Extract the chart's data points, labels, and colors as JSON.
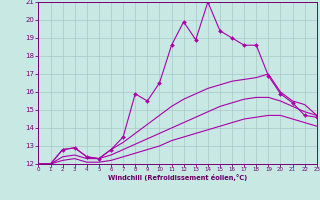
{
  "xlabel": "Windchill (Refroidissement éolien,°C)",
  "xlim": [
    0,
    23
  ],
  "ylim": [
    12,
    21
  ],
  "xticks": [
    0,
    1,
    2,
    3,
    4,
    5,
    6,
    7,
    8,
    9,
    10,
    11,
    12,
    13,
    14,
    15,
    16,
    17,
    18,
    19,
    20,
    21,
    22,
    23
  ],
  "yticks": [
    12,
    13,
    14,
    15,
    16,
    17,
    18,
    19,
    20,
    21
  ],
  "bg_color": "#c8e8e4",
  "grid_color": "#aac8c8",
  "line_color": "#aa00aa",
  "series_jagged": {
    "x": [
      0,
      1,
      2,
      3,
      4,
      5,
      6,
      7,
      8,
      9,
      10,
      11,
      12,
      13,
      14,
      15,
      16,
      17,
      18,
      19,
      20,
      21,
      22,
      23
    ],
    "y": [
      12.0,
      12.0,
      12.8,
      12.9,
      12.4,
      12.3,
      12.8,
      13.5,
      15.9,
      15.5,
      16.5,
      18.6,
      19.9,
      18.9,
      21.0,
      19.4,
      19.0,
      18.6,
      18.6,
      16.9,
      15.9,
      15.4,
      14.7,
      14.6
    ]
  },
  "series_smooth1": {
    "x": [
      0,
      1,
      2,
      3,
      4,
      5,
      6,
      7,
      8,
      9,
      10,
      11,
      12,
      13,
      14,
      15,
      16,
      17,
      18,
      19,
      20,
      21,
      22,
      23
    ],
    "y": [
      12.0,
      12.0,
      12.8,
      12.9,
      12.4,
      12.3,
      12.8,
      13.2,
      13.7,
      14.2,
      14.7,
      15.2,
      15.6,
      15.9,
      16.2,
      16.4,
      16.6,
      16.7,
      16.8,
      17.0,
      16.0,
      15.5,
      15.3,
      14.7
    ]
  },
  "series_smooth2": {
    "x": [
      0,
      1,
      2,
      3,
      4,
      5,
      6,
      7,
      8,
      9,
      10,
      11,
      12,
      13,
      14,
      15,
      16,
      17,
      18,
      19,
      20,
      21,
      22,
      23
    ],
    "y": [
      12.0,
      12.0,
      12.4,
      12.5,
      12.3,
      12.3,
      12.5,
      12.8,
      13.1,
      13.4,
      13.7,
      14.0,
      14.3,
      14.6,
      14.9,
      15.2,
      15.4,
      15.6,
      15.7,
      15.7,
      15.5,
      15.2,
      14.9,
      14.7
    ]
  },
  "series_smooth3": {
    "x": [
      0,
      1,
      2,
      3,
      4,
      5,
      6,
      7,
      8,
      9,
      10,
      11,
      12,
      13,
      14,
      15,
      16,
      17,
      18,
      19,
      20,
      21,
      22,
      23
    ],
    "y": [
      12.0,
      12.0,
      12.2,
      12.3,
      12.1,
      12.1,
      12.2,
      12.4,
      12.6,
      12.8,
      13.0,
      13.3,
      13.5,
      13.7,
      13.9,
      14.1,
      14.3,
      14.5,
      14.6,
      14.7,
      14.7,
      14.5,
      14.3,
      14.1
    ]
  }
}
